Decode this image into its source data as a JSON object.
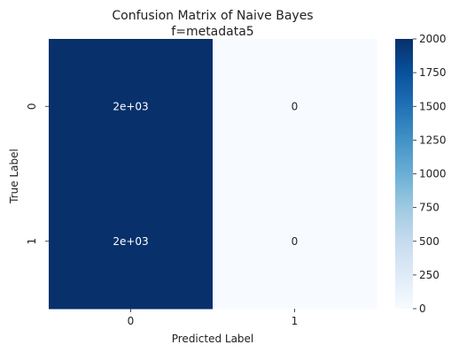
{
  "chart_data": {
    "type": "heatmap",
    "title": "Confusion Matrix of Naive Bayes",
    "subtitle": "f=metadata5",
    "xlabel": "Predicted Label",
    "ylabel": "True Label",
    "x_categories": [
      "0",
      "1"
    ],
    "y_categories": [
      "0",
      "1"
    ],
    "matrix": [
      [
        2000,
        0
      ],
      [
        2000,
        0
      ]
    ],
    "cell_labels": [
      [
        "2e+03",
        "0"
      ],
      [
        "2e+03",
        "0"
      ]
    ],
    "colormap": "Blues",
    "colorbar": {
      "range": [
        0,
        2000
      ],
      "ticks": [
        0,
        250,
        500,
        750,
        1000,
        1250,
        1500,
        1750,
        2000
      ],
      "low_color": "#f7fbff",
      "high_color": "#08306b"
    },
    "grid": false,
    "legend": "right"
  }
}
